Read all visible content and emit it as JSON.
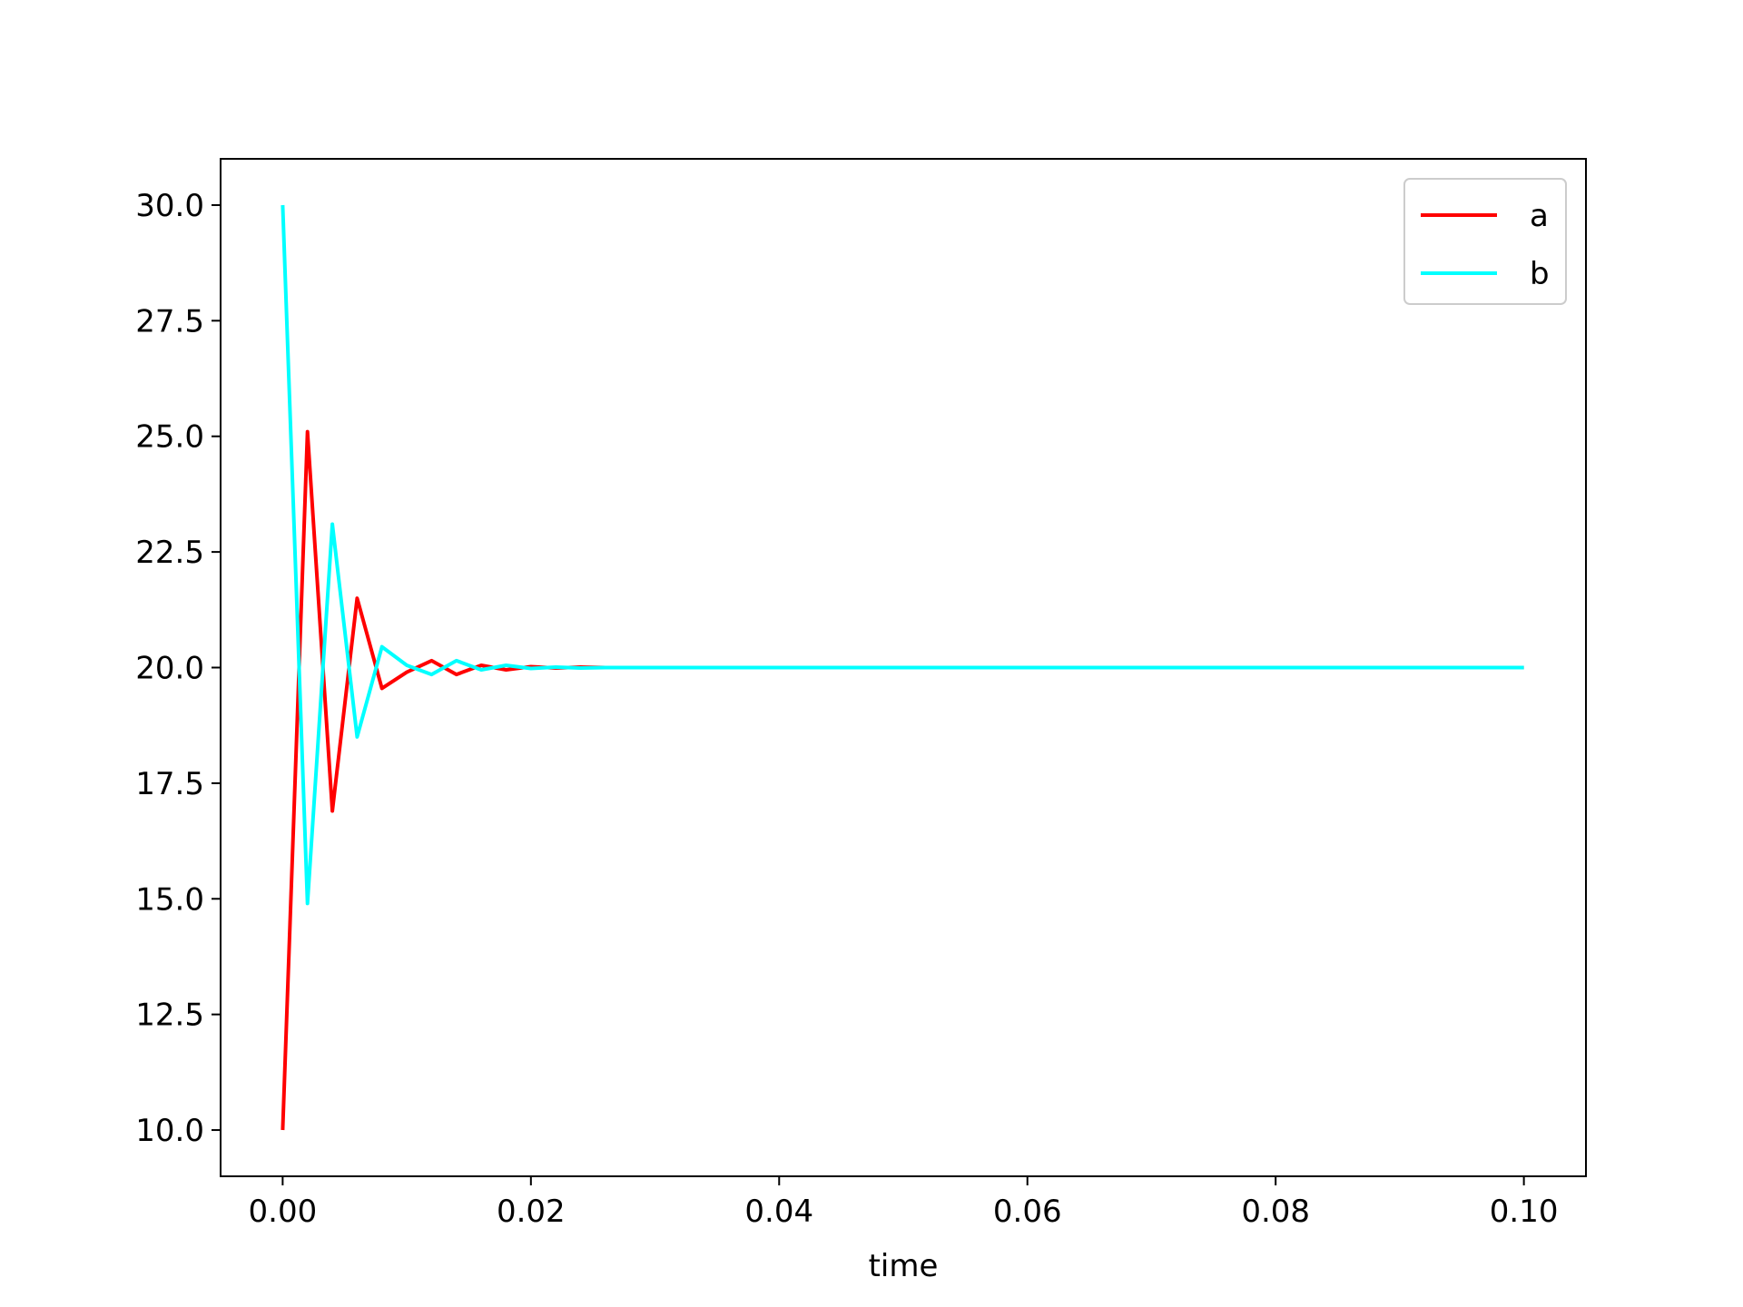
{
  "chart_data": {
    "type": "line",
    "title": "",
    "xlabel": "time",
    "ylabel": "",
    "xlim": [
      -0.005,
      0.105
    ],
    "ylim": [
      9.0,
      31.0
    ],
    "grid": false,
    "legend_placement": "top-right",
    "x_ticks": [
      "0.00",
      "0.02",
      "0.04",
      "0.06",
      "0.08",
      "0.10"
    ],
    "x_tick_values": [
      0.0,
      0.02,
      0.04,
      0.06,
      0.08,
      0.1
    ],
    "y_ticks": [
      "10.0",
      "12.5",
      "15.0",
      "17.5",
      "20.0",
      "22.5",
      "25.0",
      "27.5",
      "30.0"
    ],
    "y_tick_values": [
      10.0,
      12.5,
      15.0,
      17.5,
      20.0,
      22.5,
      25.0,
      27.5,
      30.0
    ],
    "series": [
      {
        "name": "a",
        "color": "#ff0000",
        "x": [
          0.0,
          0.002,
          0.004,
          0.006,
          0.008,
          0.01,
          0.012,
          0.014,
          0.016,
          0.018,
          0.02,
          0.022,
          0.024,
          0.026,
          0.028,
          0.03,
          0.1
        ],
        "y": [
          10.0,
          25.1,
          16.9,
          21.5,
          19.55,
          19.9,
          20.15,
          19.85,
          20.05,
          19.95,
          20.02,
          19.99,
          20.01,
          20.0,
          20.0,
          20.0,
          20.0
        ]
      },
      {
        "name": "b",
        "color": "#00ffff",
        "x": [
          0.0,
          0.002,
          0.004,
          0.006,
          0.008,
          0.01,
          0.012,
          0.014,
          0.016,
          0.018,
          0.02,
          0.022,
          0.024,
          0.026,
          0.028,
          0.03,
          0.1
        ],
        "y": [
          30.0,
          14.9,
          23.1,
          18.5,
          20.45,
          20.05,
          19.85,
          20.15,
          19.95,
          20.05,
          19.98,
          20.01,
          19.99,
          20.0,
          20.0,
          20.0,
          20.0
        ]
      }
    ]
  }
}
